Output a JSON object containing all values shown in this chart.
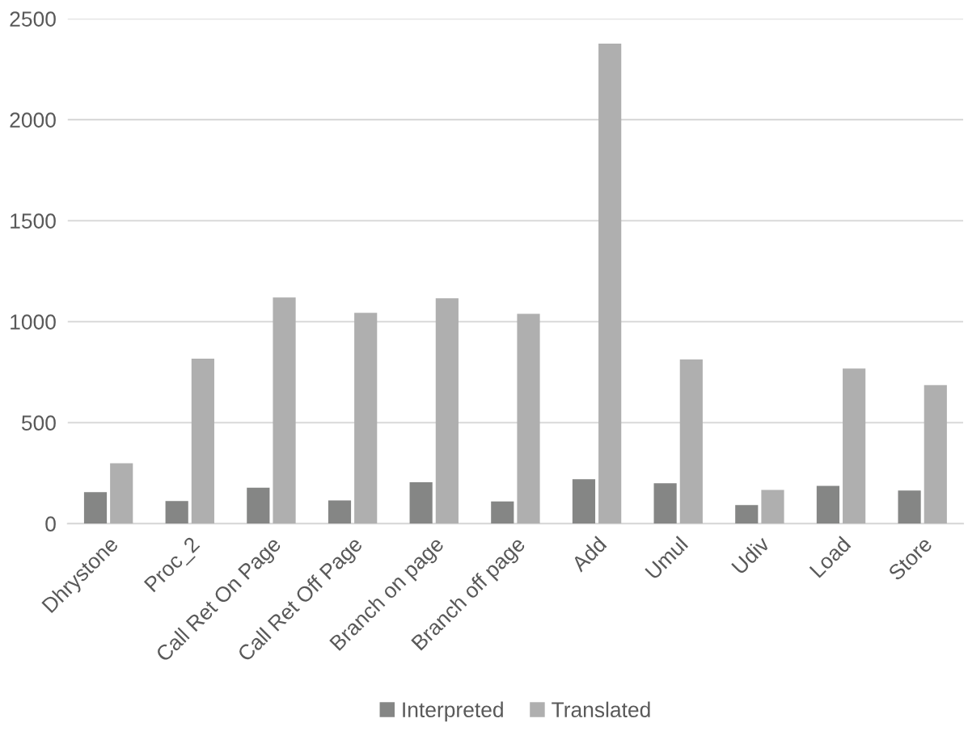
{
  "chart_data": {
    "type": "bar",
    "categories": [
      "Dhrystone",
      "Proc_2",
      "Call Ret On Page",
      "Call Ret Off Page",
      "Branch on page",
      "Branch off page",
      "Add",
      "Umul",
      "Udiv",
      "Load",
      "Store"
    ],
    "series": [
      {
        "name": "Interpreted",
        "color": "#858685",
        "values": [
          156,
          112,
          178,
          115,
          205,
          110,
          220,
          200,
          92,
          187,
          164
        ]
      },
      {
        "name": "Translated",
        "color": "#afafaf",
        "values": [
          299,
          817,
          1120,
          1044,
          1116,
          1039,
          2377,
          813,
          167,
          768,
          686
        ]
      }
    ],
    "ylim": [
      0,
      2500
    ],
    "yticks": [
      0,
      500,
      1000,
      1500,
      2000,
      2500
    ],
    "grid": "y",
    "legend": "bottom"
  }
}
